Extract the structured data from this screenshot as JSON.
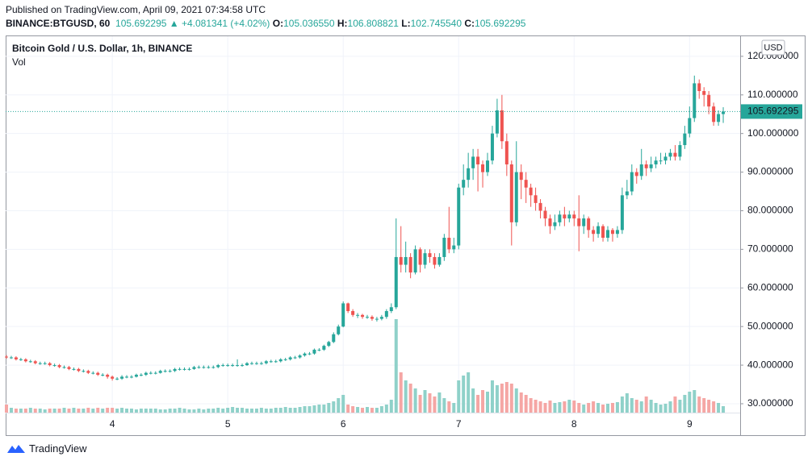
{
  "header": {
    "published": "Published on TradingView.com, April 09, 2021 07:34:58 UTC",
    "symbol": "BINANCE:BTGUSD, 60",
    "price": "105.692295",
    "change": "▲ +4.081341 (+4.02%)",
    "o_label": "O:",
    "o": "105.036550",
    "h_label": "H:",
    "h": "106.808821",
    "l_label": "L:",
    "l": "102.745540",
    "c_label": "C:",
    "c": "105.692295"
  },
  "footer": {
    "brand": "TradingView"
  },
  "chart_data": {
    "type": "candlestick",
    "title": "Bitcoin Gold / U.S. Dollar, 1h, BINANCE",
    "volume_label": "Vol",
    "currency": "USD",
    "last_price_label": "105.692295",
    "up_color": "#26a69a",
    "down_color": "#ef5350",
    "up_volume_color": "#8fd1c9",
    "down_volume_color": "#f5a6a4",
    "grid": true,
    "open": [
      42.2,
      42,
      42,
      41.5,
      41.5,
      41,
      41,
      40.5,
      40.5,
      40.5,
      40,
      40,
      39.5,
      39.5,
      39,
      39,
      38.5,
      38.5,
      38,
      38,
      37.5,
      37.5,
      37,
      36.5,
      36.5,
      37,
      37,
      37,
      37.5,
      37.5,
      38,
      38,
      38,
      38.5,
      38.5,
      38.5,
      39,
      39,
      39,
      39,
      39.5,
      39.5,
      39.5,
      39.5,
      39.5,
      40,
      40,
      40,
      40,
      40,
      40,
      40.5,
      40.5,
      40.5,
      40.5,
      41,
      41,
      41,
      41.5,
      41.5,
      42,
      42,
      42.5,
      43,
      43,
      44,
      44,
      45,
      46,
      48,
      50,
      56,
      54,
      53,
      53,
      52.5,
      52.5,
      52,
      52,
      52.5,
      54,
      55,
      68,
      66,
      68,
      64,
      70,
      66,
      69,
      68,
      66,
      68,
      73,
      70,
      71,
      86,
      88,
      91,
      94,
      92,
      90,
      93,
      100,
      106,
      98,
      92,
      77,
      90,
      88,
      86,
      84,
      82,
      80,
      78,
      76,
      77,
      79,
      78,
      79,
      78,
      76,
      78,
      75,
      74,
      76,
      73,
      75,
      74,
      75,
      84,
      85,
      90,
      89,
      92,
      91,
      92,
      93,
      93,
      94,
      95,
      94,
      97,
      100,
      104,
      113,
      111,
      110,
      107,
      103,
      105.03655
    ],
    "high": [
      42.6,
      42.4,
      42.3,
      41.9,
      41.8,
      41.4,
      41.3,
      40.9,
      40.9,
      40.8,
      40.4,
      40.3,
      39.9,
      39.8,
      39.4,
      39.3,
      38.9,
      38.8,
      38.4,
      38.3,
      37.9,
      37.8,
      37.3,
      36.9,
      37.4,
      37.4,
      37.4,
      37.8,
      37.9,
      38.3,
      38.4,
      38.4,
      38.8,
      38.9,
      38.9,
      39.3,
      39.4,
      39.4,
      39.4,
      39.8,
      39.9,
      39.9,
      39.9,
      39.9,
      40.3,
      40.4,
      40.4,
      40.4,
      41.5,
      40.4,
      40.8,
      40.9,
      40.9,
      40.9,
      41.3,
      41.4,
      41.4,
      41.8,
      41.9,
      42.3,
      42.4,
      42.8,
      43.3,
      43.4,
      44.3,
      44.4,
      45.3,
      46.3,
      48.5,
      50.5,
      56.5,
      56.2,
      54.5,
      53.5,
      53.3,
      53,
      52.9,
      52.5,
      53,
      54.5,
      56,
      78,
      76,
      72,
      69,
      71,
      70.5,
      70,
      70,
      69,
      69,
      74,
      81,
      73,
      87,
      92,
      95,
      96,
      96,
      93,
      95,
      102,
      109,
      110,
      100,
      93,
      98,
      92,
      90,
      87,
      86,
      83,
      81,
      79,
      79,
      80,
      81,
      80,
      80,
      84,
      79,
      78.5,
      76,
      77,
      76.5,
      76,
      75.5,
      76,
      86,
      88,
      92,
      91,
      96,
      93,
      94,
      94,
      95,
      95,
      96,
      97,
      98,
      102,
      107,
      115,
      114,
      112,
      111,
      108,
      106,
      106.808821
    ],
    "low": [
      41.7,
      41.6,
      41.2,
      41.1,
      40.7,
      40.6,
      40.2,
      40.1,
      40.1,
      39.7,
      39.6,
      39.2,
      39.1,
      38.7,
      38.6,
      38.2,
      38.1,
      37.7,
      37.6,
      37.2,
      37.1,
      36.5,
      36,
      36.1,
      36.2,
      36.6,
      36.6,
      36.8,
      37.1,
      37.2,
      37.6,
      37.6,
      37.8,
      38.1,
      38.1,
      38.2,
      38.6,
      38.6,
      38.6,
      38.8,
      39.1,
      39.1,
      39.1,
      39.1,
      39.2,
      39.6,
      39.6,
      39.6,
      39.6,
      39.6,
      39.8,
      40.1,
      40.1,
      40.1,
      40.2,
      40.6,
      40.6,
      40.7,
      41.1,
      41.2,
      41.6,
      41.7,
      42.2,
      42.6,
      42.7,
      43.6,
      43.7,
      44.7,
      45.7,
      47.7,
      49.8,
      53.5,
      52.5,
      52.2,
      52,
      52,
      51.5,
      51.3,
      51.6,
      52,
      53.5,
      54.5,
      64,
      64,
      62.5,
      63.5,
      64,
      65,
      66.5,
      65,
      65.5,
      67,
      69,
      69,
      70,
      84,
      86,
      88,
      85,
      86,
      89,
      92,
      99,
      96,
      89,
      71,
      76,
      83,
      82,
      81,
      80,
      78,
      76,
      74,
      75,
      76,
      76,
      77,
      76,
      69.5,
      74,
      73,
      72,
      73,
      72,
      72,
      72,
      73,
      74,
      83,
      84,
      87,
      88,
      89,
      90,
      91,
      92,
      92,
      93,
      93,
      93,
      96,
      99,
      103,
      109,
      107,
      105,
      102,
      102,
      102.74554
    ],
    "close": [
      42,
      42,
      41.5,
      41.5,
      41,
      41,
      40.5,
      40.5,
      40.5,
      40,
      40,
      39.5,
      39.5,
      39,
      39,
      38.5,
      38.5,
      38,
      38,
      37.5,
      37.5,
      37,
      36.5,
      36.5,
      37,
      37,
      37,
      37.5,
      37.5,
      38,
      38,
      38,
      38.5,
      38.5,
      38.5,
      39,
      39,
      39,
      39,
      39.5,
      39.5,
      39.5,
      39.5,
      39.5,
      40,
      40,
      40,
      40,
      40,
      40,
      40.5,
      40.5,
      40.5,
      40.5,
      41,
      41,
      41,
      41.5,
      41.5,
      42,
      42,
      42.5,
      43,
      43,
      44,
      44,
      45,
      46,
      48,
      50,
      56,
      54,
      53,
      53,
      52.5,
      52.5,
      52,
      52,
      52.5,
      54,
      55,
      68,
      66,
      68,
      64,
      70,
      66,
      69,
      68,
      66,
      68,
      73,
      70,
      71,
      86,
      88,
      91,
      94,
      92,
      90,
      93,
      100,
      106,
      98,
      92,
      77,
      90,
      88,
      86,
      84,
      82,
      80,
      78,
      76,
      77,
      79,
      78,
      79,
      78,
      76,
      78,
      75,
      74,
      76,
      73,
      75,
      74,
      75,
      84,
      85,
      90,
      89,
      92,
      91,
      92,
      93,
      93,
      94,
      95,
      94,
      97,
      100,
      104,
      113,
      111,
      110,
      107,
      103,
      105.03655,
      105.692295
    ],
    "volume": [
      10,
      6,
      5,
      5,
      5,
      6,
      5,
      5,
      4,
      5,
      5,
      5,
      6,
      5,
      6,
      5,
      5,
      6,
      5,
      6,
      5,
      6,
      6,
      5,
      6,
      5,
      5,
      4,
      5,
      5,
      5,
      5,
      4,
      4,
      5,
      5,
      6,
      5,
      4,
      4,
      5,
      4,
      5,
      5,
      6,
      5,
      6,
      7,
      6,
      6,
      5,
      5,
      5,
      6,
      5,
      5,
      6,
      6,
      7,
      6,
      6,
      7,
      8,
      8,
      9,
      10,
      10,
      12,
      14,
      18,
      22,
      10,
      8,
      7,
      6,
      7,
      6,
      6,
      8,
      10,
      16,
      116,
      50,
      40,
      36,
      30,
      22,
      28,
      24,
      20,
      25,
      18,
      14,
      12,
      40,
      46,
      50,
      30,
      22,
      28,
      26,
      40,
      34,
      36,
      38,
      36,
      30,
      25,
      22,
      18,
      16,
      14,
      12,
      15,
      12,
      13,
      14,
      16,
      15,
      12,
      10,
      12,
      14,
      12,
      10,
      11,
      12,
      13,
      20,
      24,
      18,
      16,
      14,
      20,
      16,
      12,
      10,
      11,
      14,
      20,
      16,
      22,
      26,
      28,
      20,
      18,
      16,
      14,
      12,
      8
    ],
    "ylim": [
      27.7,
      125.4
    ],
    "yticks": [
      {
        "value": 30,
        "label": "30.000000"
      },
      {
        "value": 40,
        "label": "40.000000"
      },
      {
        "value": 50,
        "label": "50.000000"
      },
      {
        "value": 60,
        "label": "60.000000"
      },
      {
        "value": 70,
        "label": "70.000000"
      },
      {
        "value": 80,
        "label": "80.000000"
      },
      {
        "value": 90,
        "label": "90.000000"
      },
      {
        "value": 100,
        "label": "100.000000"
      },
      {
        "value": 110,
        "label": "110.000000"
      },
      {
        "value": 120,
        "label": "120.000000"
      }
    ],
    "xticks": [
      {
        "value": 22,
        "label": "4"
      },
      {
        "value": 46,
        "label": "5"
      },
      {
        "value": 70,
        "label": "6"
      },
      {
        "value": 94,
        "label": "7"
      },
      {
        "value": 118,
        "label": "8"
      },
      {
        "value": 142,
        "label": "9"
      }
    ]
  }
}
